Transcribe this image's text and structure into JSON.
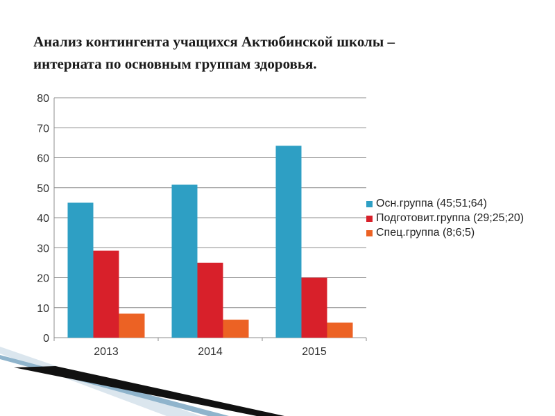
{
  "title": "Анализ контингента учащихся Актюбинской школы –\nинтерната по основным группам здоровья.",
  "chart_data": {
    "type": "bar",
    "categories": [
      "2013",
      "2014",
      "2015"
    ],
    "series": [
      {
        "name": "Осн.группа (45;51;64)",
        "values": [
          45,
          51,
          64
        ],
        "color": "#2e9fc4"
      },
      {
        "name": "Подготовит.группа (29;25;20)",
        "values": [
          29,
          25,
          20
        ],
        "color": "#d8202a"
      },
      {
        "name": "Спец.группа (8;6;5)",
        "values": [
          8,
          6,
          5
        ],
        "color": "#ec6224"
      }
    ],
    "ylim": [
      0,
      80
    ],
    "yticks": [
      "0",
      "10",
      "20",
      "30",
      "40",
      "50",
      "60",
      "70",
      "80"
    ],
    "grid": true,
    "legend_position": "right"
  }
}
